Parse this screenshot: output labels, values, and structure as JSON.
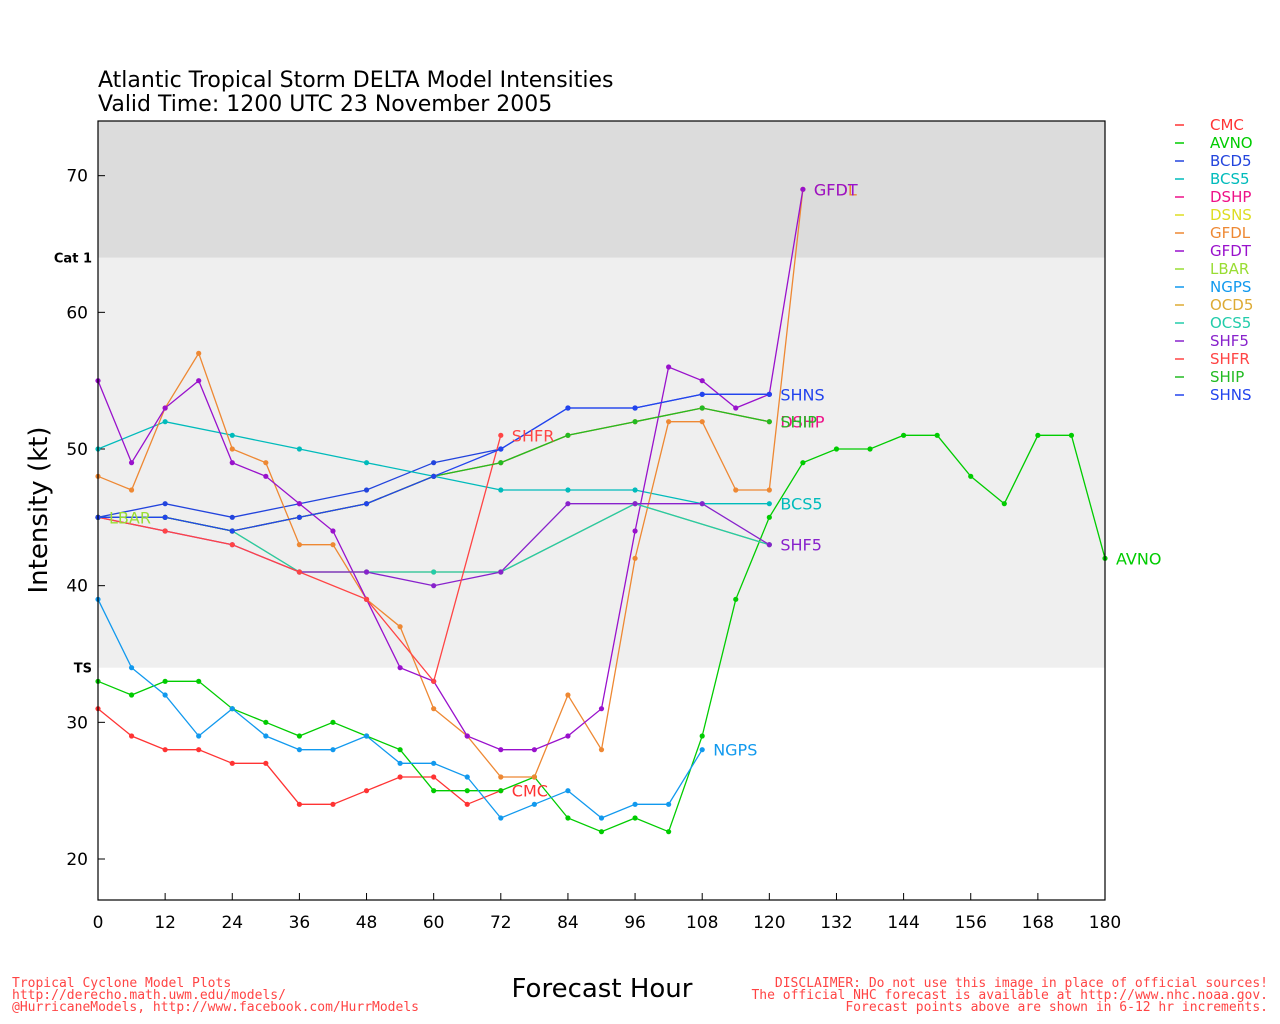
{
  "chart_data": {
    "type": "line",
    "title": "Atlantic Tropical Storm DELTA Model Intensities",
    "subtitle": "Valid Time: 1200 UTC 23 November 2005",
    "xlabel": "Forecast Hour",
    "ylabel": "Intensity (kt)",
    "xlim": [
      0,
      180
    ],
    "ylim": [
      17,
      74
    ],
    "xticks": [
      0,
      12,
      24,
      36,
      48,
      60,
      72,
      84,
      96,
      108,
      120,
      132,
      144,
      156,
      168,
      180
    ],
    "yticks": [
      20,
      30,
      40,
      50,
      60,
      70
    ],
    "bands": [
      {
        "label": "TS",
        "from": 34,
        "to": 64,
        "color": "#efefef"
      },
      {
        "label": "Cat 1",
        "from": 64,
        "to": 74,
        "color": "#dcdcdc"
      }
    ],
    "legend_position": "right",
    "series": [
      {
        "name": "CMC",
        "color": "#ff3333",
        "x": [
          0,
          6,
          12,
          18,
          24,
          30,
          36,
          42,
          48,
          54,
          60,
          66,
          72
        ],
        "y": [
          31,
          29,
          28,
          28,
          27,
          27,
          24,
          24,
          25,
          26,
          26,
          24,
          25
        ],
        "end_label": "CMC"
      },
      {
        "name": "AVNO",
        "color": "#00cc00",
        "x": [
          0,
          6,
          12,
          18,
          24,
          30,
          36,
          42,
          48,
          54,
          60,
          66,
          72,
          78,
          84,
          90,
          96,
          102,
          108,
          114,
          120,
          126,
          132,
          138,
          144,
          150,
          156,
          162,
          168,
          174,
          180
        ],
        "y": [
          33,
          32,
          33,
          33,
          31,
          30,
          29,
          30,
          29,
          28,
          25,
          25,
          25,
          26,
          23,
          22,
          23,
          22,
          29,
          39,
          45,
          49,
          50,
          50,
          51,
          51,
          48,
          46,
          51,
          51,
          42
        ],
        "end_label": "AVNO"
      },
      {
        "name": "BCD5",
        "color": "#2244dd",
        "x": [
          0,
          12,
          24,
          36,
          48,
          60,
          72,
          84,
          96,
          108,
          120
        ],
        "y": [
          45,
          46,
          45,
          46,
          47,
          49,
          50,
          53,
          53,
          54,
          54
        ],
        "end_label": ""
      },
      {
        "name": "BCS5",
        "color": "#00bbbb",
        "x": [
          0,
          12,
          24,
          36,
          48,
          60,
          72,
          84,
          96,
          108,
          120
        ],
        "y": [
          50,
          52,
          51,
          50,
          49,
          48,
          47,
          47,
          47,
          46,
          46
        ],
        "end_label": "BCS5"
      },
      {
        "name": "DSHP",
        "color": "#ee1188",
        "x": [
          0,
          12,
          24,
          36,
          48,
          60,
          72,
          84,
          96,
          108,
          120
        ],
        "y": [
          45,
          45,
          44,
          45,
          46,
          48,
          49,
          51,
          52,
          53,
          52
        ],
        "end_label": "DSHP"
      },
      {
        "name": "DSNS",
        "color": "#dddd22",
        "x": [
          0,
          12,
          24,
          36,
          48,
          60,
          72,
          84,
          96,
          108,
          120
        ],
        "y": [
          45,
          45,
          44,
          45,
          46,
          48,
          49,
          51,
          52,
          53,
          52
        ],
        "end_label": ""
      },
      {
        "name": "GFDL",
        "color": "#ee8833",
        "x": [
          0,
          6,
          12,
          18,
          24,
          30,
          36,
          42,
          48,
          54,
          60,
          66,
          72,
          78,
          84,
          90,
          96,
          102,
          108,
          114,
          120,
          126
        ],
        "y": [
          48,
          47,
          53,
          57,
          50,
          49,
          43,
          43,
          39,
          37,
          31,
          29,
          26,
          26,
          32,
          28,
          42,
          52,
          52,
          47,
          47,
          69
        ],
        "end_label": "GFDL"
      },
      {
        "name": "GFDT",
        "color": "#9911cc",
        "x": [
          0,
          6,
          12,
          18,
          24,
          30,
          36,
          42,
          48,
          54,
          60,
          66,
          72,
          78,
          84,
          90,
          96,
          102,
          108,
          114,
          120,
          126
        ],
        "y": [
          55,
          49,
          53,
          55,
          49,
          48,
          46,
          44,
          39,
          34,
          33,
          29,
          28,
          28,
          29,
          31,
          44,
          56,
          55,
          53,
          54,
          69
        ],
        "end_label": "GFDT"
      },
      {
        "name": "LBAR",
        "color": "#99dd33",
        "x": [
          0
        ],
        "y": [
          45
        ],
        "end_label": "LBAR"
      },
      {
        "name": "NGPS",
        "color": "#1199ee",
        "x": [
          0,
          6,
          12,
          18,
          24,
          30,
          36,
          42,
          48,
          54,
          60,
          66,
          72,
          78,
          84,
          90,
          96,
          102,
          108
        ],
        "y": [
          39,
          34,
          32,
          29,
          31,
          29,
          28,
          28,
          29,
          27,
          27,
          26,
          23,
          24,
          25,
          23,
          24,
          24,
          28
        ],
        "end_label": "NGPS"
      },
      {
        "name": "OCD5",
        "color": "#ddaa33",
        "x": [
          0,
          12,
          24,
          36,
          48,
          60,
          72,
          96,
          120
        ],
        "y": [
          45,
          45,
          44,
          41,
          41,
          41,
          41,
          46,
          43
        ],
        "end_label": ""
      },
      {
        "name": "OCS5",
        "color": "#22ccaa",
        "x": [
          0,
          12,
          24,
          36,
          48,
          60,
          72,
          96,
          120
        ],
        "y": [
          45,
          45,
          44,
          41,
          41,
          41,
          41,
          46,
          43
        ],
        "end_label": ""
      },
      {
        "name": "SHF5",
        "color": "#8822cc",
        "x": [
          0,
          12,
          24,
          36,
          48,
          60,
          72,
          84,
          96,
          108,
          120
        ],
        "y": [
          45,
          44,
          43,
          41,
          41,
          40,
          41,
          46,
          46,
          46,
          43
        ],
        "end_label": "SHF5"
      },
      {
        "name": "SHFR",
        "color": "#ff4444",
        "x": [
          0,
          12,
          24,
          36,
          48,
          60,
          72
        ],
        "y": [
          45,
          44,
          43,
          41,
          39,
          33,
          51
        ],
        "end_label": "SHFR"
      },
      {
        "name": "SHIP",
        "color": "#22bb22",
        "x": [
          0,
          12,
          24,
          36,
          48,
          60,
          72,
          84,
          96,
          108,
          120
        ],
        "y": [
          45,
          45,
          44,
          45,
          46,
          48,
          49,
          51,
          52,
          53,
          52
        ],
        "end_label": "SHIP"
      },
      {
        "name": "SHNS",
        "color": "#2244ee",
        "x": [
          0,
          12,
          24,
          36,
          48,
          60,
          72,
          84,
          96,
          108,
          120
        ],
        "y": [
          45,
          45,
          44,
          45,
          46,
          48,
          50,
          53,
          53,
          54,
          54
        ],
        "end_label": "SHNS"
      }
    ]
  },
  "footer": {
    "left_line1": "Tropical Cyclone Model Plots",
    "left_line2": "http://derecho.math.uwm.edu/models/",
    "left_line3": "@HurricaneModels, http://www.facebook.com/HurrModels",
    "right_line1": "DISCLAIMER: Do not use this image in place of official sources!",
    "right_line2": "The official NHC forecast is available at http://www.nhc.noaa.gov.",
    "right_line3": "Forecast points above are shown in 6-12 hr increments."
  }
}
